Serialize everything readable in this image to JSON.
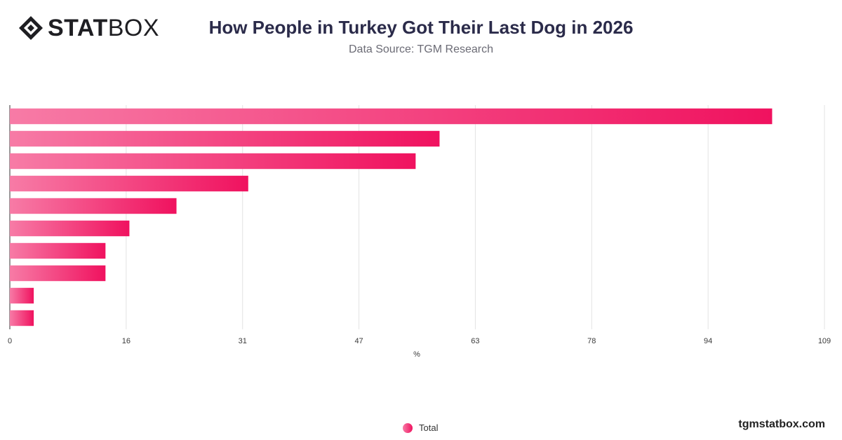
{
  "brand": {
    "logo_bold": "STAT",
    "logo_light": "BOX",
    "website": "tgmstatbox.com"
  },
  "chart_data": {
    "type": "bar",
    "orientation": "horizontal",
    "title": "How People in Turkey Got Their Last Dog in 2026",
    "subtitle": "Data Source: TGM Research",
    "xlabel": "%",
    "ylabel": "",
    "categories": [
      "",
      "",
      "",
      "",
      "",
      "",
      "",
      "",
      "",
      ""
    ],
    "series": [
      {
        "name": "Total",
        "values": [
          102,
          57.5,
          54.3,
          31.9,
          22.3,
          16,
          12.8,
          12.8,
          3.2,
          3.2
        ]
      }
    ],
    "xlim": [
      0,
      109
    ],
    "xticks": [
      "0",
      "16",
      "31",
      "47",
      "63",
      "78",
      "94",
      "109"
    ],
    "grid": true,
    "legend": "bottom-center",
    "colors": {
      "bar_start": "#f77ba6",
      "bar_end": "#f0125f"
    }
  }
}
